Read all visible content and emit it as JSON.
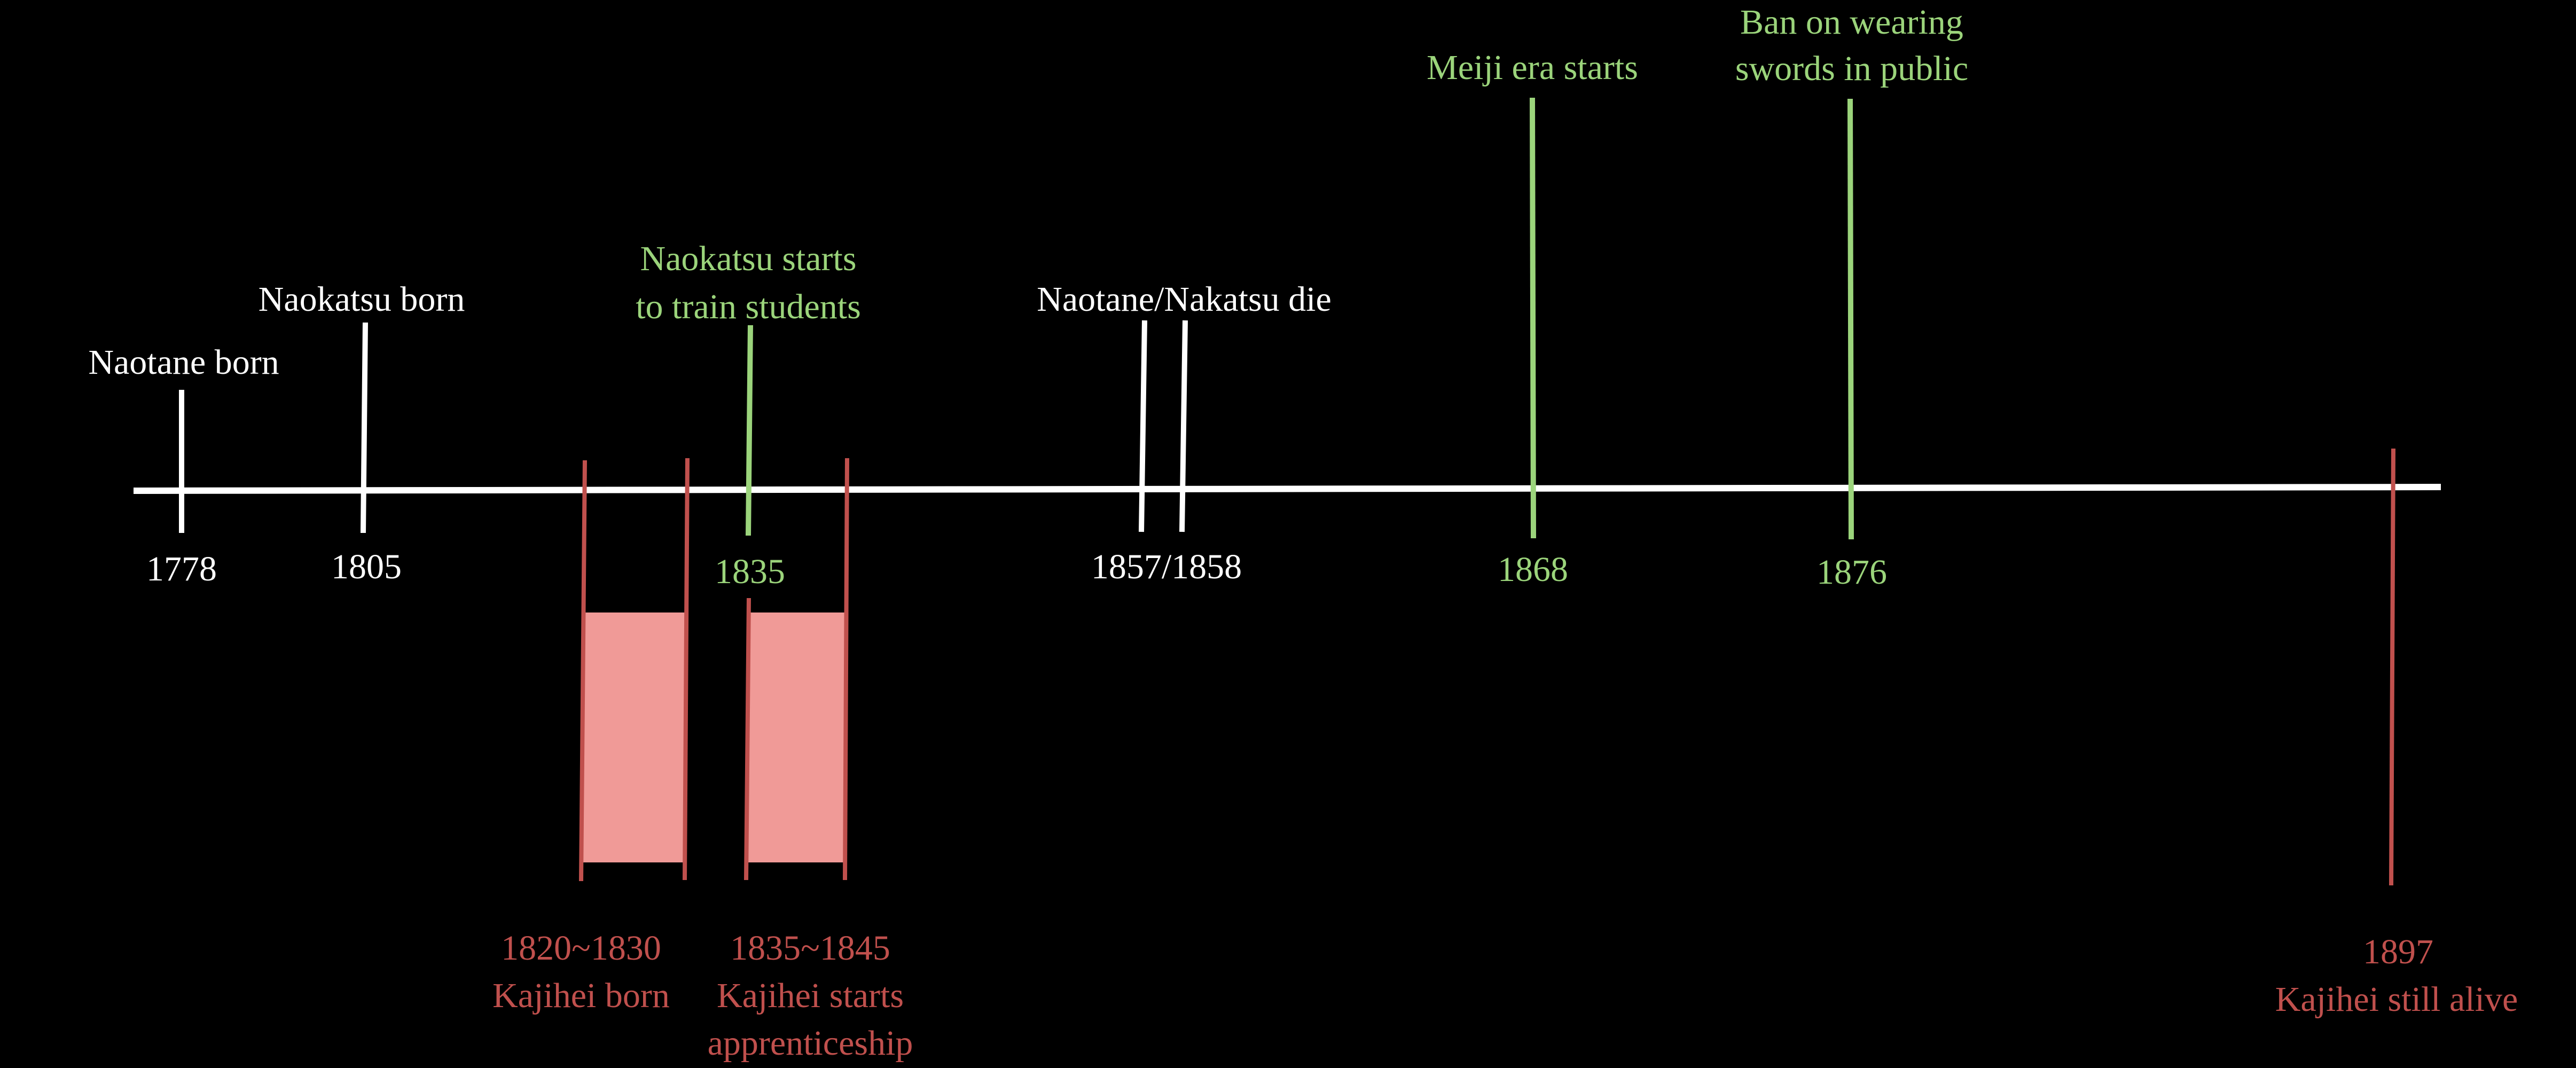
{
  "colors": {
    "background": "#000000",
    "axis": "#FFFFFF",
    "swordsmith": "#FFFFFF",
    "history": "#9BD47B",
    "kajihei": "#C0504D",
    "kajihei_fill": "#F09A97"
  },
  "events": [
    {
      "id": "naotane-born",
      "label": "Naotane born",
      "year": "1778",
      "group": "swordsmith"
    },
    {
      "id": "naokatsu-born",
      "label": "Naokatsu born",
      "year": "1805",
      "group": "swordsmith"
    },
    {
      "id": "naokatsu-trains",
      "label_line1": "Naokatsu starts",
      "label_line2": "to train students",
      "year": "1835",
      "group": "history"
    },
    {
      "id": "naotane-nakatsu-die",
      "label": "Naotane/Nakatsu die",
      "year": "1857/1858",
      "group": "swordsmith"
    },
    {
      "id": "meiji-era",
      "label": "Meiji era starts",
      "year": "1868",
      "group": "history"
    },
    {
      "id": "sword-ban",
      "label_line1": "Ban on wearing",
      "label_line2": "swords in public",
      "year": "1876",
      "group": "history"
    }
  ],
  "ranges": [
    {
      "id": "kajihei-born",
      "years": "1820~1830",
      "label": "Kajihei born",
      "group": "kajihei"
    },
    {
      "id": "kajihei-apprenticeship",
      "years": "1835~1845",
      "label_line1": "Kajihei starts",
      "label_line2": "apprenticeship",
      "group": "kajihei"
    }
  ],
  "end_marker": {
    "id": "kajihei-alive",
    "year": "1897",
    "label": "Kajihei still alive",
    "group": "kajihei"
  }
}
